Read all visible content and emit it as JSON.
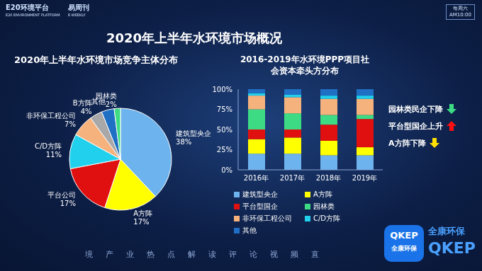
{
  "page": {
    "title": "2020年上半年水环境市场概况",
    "logo": "E20环境平台",
    "logo_sub": "E20 ENVIRONMENT PLATFORM",
    "weekly": "易周刊",
    "weekly_sub": "E-WEEKLY",
    "schedule_day": "每周六",
    "schedule_time": "AM10:00",
    "ticker": "境产业热点解读评论视频直",
    "brand_cn": "全康环保",
    "brand_en": "QKEP"
  },
  "chart_data": [
    {
      "type": "pie",
      "title": "2020年上半年水环境市场竞争主体分布",
      "categories": [
        "建筑型央企",
        "A方阵",
        "平台公司",
        "C/D方阵",
        "非环保工程公司",
        "B方阵",
        "其他",
        "园林类"
      ],
      "values": [
        38,
        17,
        17,
        11,
        7,
        4,
        4,
        2
      ],
      "value_labels": [
        "38%",
        "17%",
        "17%",
        "11%",
        "7%",
        "4%",
        null,
        "2%"
      ],
      "colors": [
        "#6db3ee",
        "#ffff00",
        "#e01010",
        "#20d0ec",
        "#f6b27c",
        "#a8a8a8",
        "#1f6fc4",
        "#3ddc84"
      ],
      "data_labels": true
    },
    {
      "type": "bar",
      "title": "2016-2019年水环境PPP项目社会资本牵头方分布",
      "stacked": true,
      "grid": false,
      "legend": "bottom",
      "categories": [
        "2016年",
        "2017年",
        "2018年",
        "2019年"
      ],
      "ylim": [
        0,
        100
      ],
      "yticks": [
        {
          "value": 0,
          "label": "0%"
        },
        {
          "value": 25,
          "label": "25%"
        },
        {
          "value": 50,
          "label": "50%"
        },
        {
          "value": 75,
          "label": "75%"
        },
        {
          "value": 100,
          "label": "100%"
        }
      ],
      "series": [
        {
          "name": "建筑型央企",
          "color": "#6db3ee",
          "values": [
            20,
            20,
            18,
            18
          ]
        },
        {
          "name": "A方阵",
          "color": "#ffff00",
          "values": [
            18,
            20,
            18,
            10
          ]
        },
        {
          "name": "平台型国企",
          "color": "#e01010",
          "values": [
            12,
            10,
            20,
            35
          ]
        },
        {
          "name": "园林类",
          "color": "#3ddc84",
          "values": [
            25,
            20,
            12,
            5
          ]
        },
        {
          "name": "非环保工程公司",
          "color": "#f6b27c",
          "values": [
            17,
            20,
            20,
            20
          ]
        },
        {
          "name": "C/D方阵",
          "color": "#20d0ec",
          "values": [
            3,
            3,
            4,
            4
          ]
        },
        {
          "name": "其他",
          "color": "#1f6fc4",
          "values": [
            5,
            7,
            8,
            8
          ]
        }
      ],
      "annotations": [
        {
          "text": "园林类民企下降",
          "color": "#3ddc84"
        },
        {
          "text": "平台型国企上升",
          "color": "#ff1010"
        },
        {
          "text": "A方阵下降",
          "color": "#ffe000"
        }
      ]
    }
  ]
}
